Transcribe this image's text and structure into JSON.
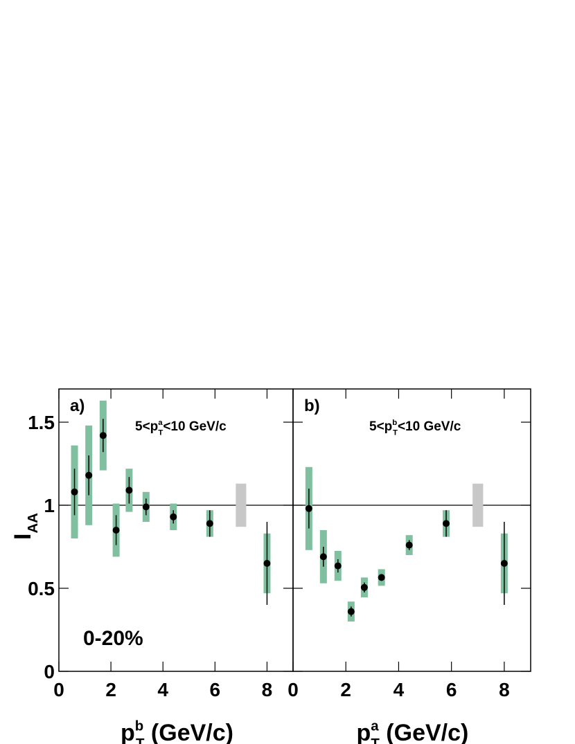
{
  "chart_data": [
    {
      "type": "scatter",
      "panel_label": "a)",
      "cut_label": {
        "prefix": "5<p",
        "sub": "T",
        "sup": "a",
        "suffix": "<10 GeV/c"
      },
      "x_label": {
        "prefix": "p",
        "sub": "T",
        "sup": "b",
        "suffix": " (GeV/c)"
      },
      "y_label": {
        "prefix": "I",
        "sub": "AA"
      },
      "centrality": "0-20%",
      "x": [
        0.6,
        1.15,
        1.7,
        2.2,
        2.7,
        3.35,
        4.4,
        5.8,
        8.0
      ],
      "values": [
        1.08,
        1.18,
        1.42,
        0.85,
        1.09,
        0.99,
        0.93,
        0.89,
        0.65
      ],
      "stat_errors": [
        0.14,
        0.12,
        0.1,
        0.09,
        0.08,
        0.05,
        0.04,
        0.08,
        0.25
      ],
      "sys_errors": [
        0.28,
        0.3,
        0.21,
        0.16,
        0.13,
        0.09,
        0.08,
        0.08,
        0.18
      ],
      "color": "#000000",
      "sys_color": "#80c0a0",
      "norm_box": {
        "x": 7.0,
        "xerror": 0.2,
        "value": 1,
        "error": 0.13,
        "color": "#c8c8c8"
      },
      "reference_line": 1,
      "xlim": [
        0,
        9
      ],
      "ylim": [
        0,
        1.7
      ],
      "xticks": [
        0,
        2,
        4,
        6,
        8
      ],
      "yticks": [
        0,
        0.5,
        1,
        1.5
      ],
      "ytick_labels": true
    },
    {
      "type": "scatter",
      "panel_label": "b)",
      "cut_label": {
        "prefix": "5<p",
        "sub": "T",
        "sup": "b",
        "suffix": "<10 GeV/c"
      },
      "x_label": {
        "prefix": "p",
        "sub": "T",
        "sup": "a",
        "suffix": " (GeV/c)"
      },
      "x": [
        0.6,
        1.15,
        1.7,
        2.2,
        2.7,
        3.35,
        4.4,
        5.8,
        8.0
      ],
      "values": [
        0.98,
        0.69,
        0.635,
        0.36,
        0.505,
        0.565,
        0.76,
        0.89,
        0.65
      ],
      "stat_errors": [
        0.12,
        0.06,
        0.04,
        0.03,
        0.03,
        0.02,
        0.03,
        0.08,
        0.25
      ],
      "sys_errors": [
        0.25,
        0.16,
        0.09,
        0.06,
        0.06,
        0.05,
        0.06,
        0.08,
        0.18
      ],
      "color": "#000000",
      "sys_color": "#80c0a0",
      "norm_box": {
        "x": 7.0,
        "xerror": 0.2,
        "value": 1,
        "error": 0.13,
        "color": "#c8c8c8"
      },
      "reference_line": 1,
      "xlim": [
        0,
        9
      ],
      "ylim": [
        0,
        1.7
      ],
      "xticks": [
        0,
        2,
        4,
        6,
        8
      ],
      "yticks": [
        0,
        0.5,
        1,
        1.5
      ],
      "ytick_labels": false
    }
  ]
}
